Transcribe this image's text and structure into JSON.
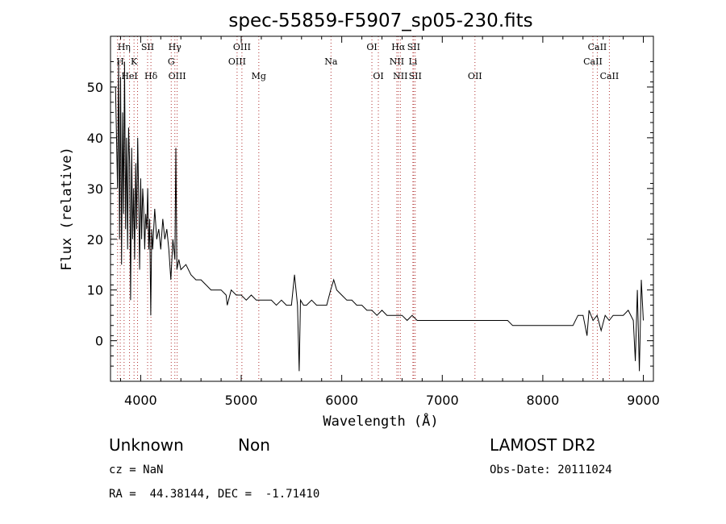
{
  "chart_data": {
    "type": "line",
    "title": "spec-55859-F5907_sp05-230.fits",
    "xlabel": "Wavelength (Å)",
    "ylabel": "Flux (relative)",
    "xlim": [
      3700,
      9100
    ],
    "ylim": [
      -8,
      60
    ],
    "xticks": [
      4000,
      5000,
      6000,
      7000,
      8000,
      9000
    ],
    "yticks": [
      0,
      10,
      20,
      30,
      40,
      50
    ],
    "series": [
      {
        "x": [
          3750,
          3770,
          3780,
          3790,
          3800,
          3810,
          3820,
          3830,
          3840,
          3850,
          3860,
          3870,
          3880,
          3890,
          3900,
          3910,
          3920,
          3930,
          3940,
          3950,
          3960,
          3970,
          3980,
          3990,
          4000,
          4010,
          4020,
          4030,
          4040,
          4050,
          4060,
          4070,
          4080,
          4090,
          4100,
          4110,
          4120,
          4140,
          4160,
          4180,
          4200,
          4220,
          4240,
          4260,
          4280,
          4300,
          4320,
          4340,
          4350,
          4360,
          4380,
          4400,
          4450,
          4500,
          4550,
          4600,
          4650,
          4700,
          4750,
          4800,
          4850,
          4861,
          4900,
          4950,
          5000,
          5050,
          5100,
          5150,
          5200,
          5250,
          5300,
          5350,
          5400,
          5450,
          5500,
          5530,
          5560,
          5577,
          5590,
          5620,
          5650,
          5700,
          5750,
          5800,
          5850,
          5890,
          5920,
          5950,
          6000,
          6050,
          6100,
          6150,
          6200,
          6250,
          6300,
          6350,
          6400,
          6450,
          6500,
          6550,
          6563,
          6600,
          6650,
          6700,
          6750,
          6800,
          6850,
          6900,
          6950,
          7000,
          7050,
          7100,
          7150,
          7200,
          7250,
          7300,
          7350,
          7400,
          7450,
          7500,
          7550,
          7600,
          7650,
          7700,
          7750,
          7800,
          7850,
          7900,
          7950,
          8000,
          8050,
          8100,
          8150,
          8200,
          8250,
          8300,
          8350,
          8400,
          8420,
          8440,
          8460,
          8500,
          8540,
          8580,
          8620,
          8660,
          8700,
          8750,
          8800,
          8850,
          8900,
          8920,
          8940,
          8960,
          8980,
          9000
        ],
        "y": [
          50,
          30,
          55,
          20,
          52,
          15,
          45,
          25,
          55,
          22,
          40,
          18,
          42,
          35,
          8,
          38,
          20,
          30,
          16,
          35,
          22,
          40,
          28,
          14,
          32,
          20,
          30,
          26,
          18,
          25,
          22,
          30,
          18,
          24,
          5,
          22,
          18,
          26,
          20,
          22,
          18,
          24,
          20,
          22,
          18,
          12,
          20,
          16,
          38,
          14,
          16,
          14,
          15,
          13,
          12,
          12,
          11,
          10,
          10,
          10,
          9,
          7,
          10,
          9,
          9,
          8,
          9,
          8,
          8,
          8,
          8,
          7,
          8,
          7,
          7,
          13,
          7,
          -6,
          8,
          7,
          7,
          8,
          7,
          7,
          7,
          10,
          12,
          10,
          9,
          8,
          8,
          7,
          7,
          6,
          6,
          5,
          6,
          5,
          5,
          5,
          5,
          5,
          4,
          5,
          4,
          4,
          4,
          4,
          4,
          4,
          4,
          4,
          4,
          4,
          4,
          4,
          4,
          4,
          4,
          4,
          4,
          4,
          4,
          3,
          3,
          3,
          3,
          3,
          3,
          3,
          3,
          3,
          3,
          3,
          3,
          3,
          5,
          5,
          3,
          1,
          6,
          4,
          5,
          2,
          5,
          4,
          5,
          5,
          5,
          6,
          4,
          -4,
          10,
          -6,
          12,
          4
        ]
      }
    ],
    "line_ids": [
      {
        "label": "Hη",
        "x": 3835,
        "row": 0
      },
      {
        "label": "SII",
        "x": 4069,
        "row": 0
      },
      {
        "label": "Hγ",
        "x": 4340,
        "row": 0
      },
      {
        "label": "OIII",
        "x": 5007,
        "row": 0
      },
      {
        "label": "OI",
        "x": 6300,
        "row": 0
      },
      {
        "label": "Hα",
        "x": 6563,
        "row": 0
      },
      {
        "label": "SII",
        "x": 6716,
        "row": 0
      },
      {
        "label": "CaII",
        "x": 8542,
        "row": 0
      },
      {
        "label": "H",
        "x": 3797,
        "row": 1
      },
      {
        "label": "K",
        "x": 3934,
        "row": 1
      },
      {
        "label": "G",
        "x": 4304,
        "row": 1
      },
      {
        "label": "OIII",
        "x": 4959,
        "row": 1
      },
      {
        "label": "Na",
        "x": 5893,
        "row": 1
      },
      {
        "label": "NII",
        "x": 6548,
        "row": 1
      },
      {
        "label": "Li",
        "x": 6708,
        "row": 1
      },
      {
        "label": "CaII",
        "x": 8498,
        "row": 1
      },
      {
        "label": "HeI",
        "x": 3889,
        "row": 2
      },
      {
        "label": "Hδ",
        "x": 4102,
        "row": 2
      },
      {
        "label": "OIII",
        "x": 4363,
        "row": 2
      },
      {
        "label": "Mg",
        "x": 5175,
        "row": 2
      },
      {
        "label": "OI",
        "x": 6364,
        "row": 2
      },
      {
        "label": "NII",
        "x": 6583,
        "row": 2
      },
      {
        "label": "SII",
        "x": 6731,
        "row": 2
      },
      {
        "label": "OII",
        "x": 7325,
        "row": 2
      },
      {
        "label": "CaII",
        "x": 8662,
        "row": 2
      }
    ],
    "line_markers": [
      3770,
      3797,
      3835,
      3889,
      3934,
      3969,
      4069,
      4102,
      4304,
      4340,
      4363,
      4959,
      5007,
      5175,
      5893,
      6300,
      6364,
      6548,
      6563,
      6583,
      6708,
      6716,
      6731,
      7325,
      8498,
      8542,
      8662
    ]
  },
  "info": {
    "class_name": "Unknown",
    "subclass": "Non",
    "survey": "LAMOST DR2",
    "cz": "cz = NaN",
    "obs_date": "Obs-Date: 20111024",
    "coords": "RA =  44.38144, DEC =  -1.71410"
  }
}
